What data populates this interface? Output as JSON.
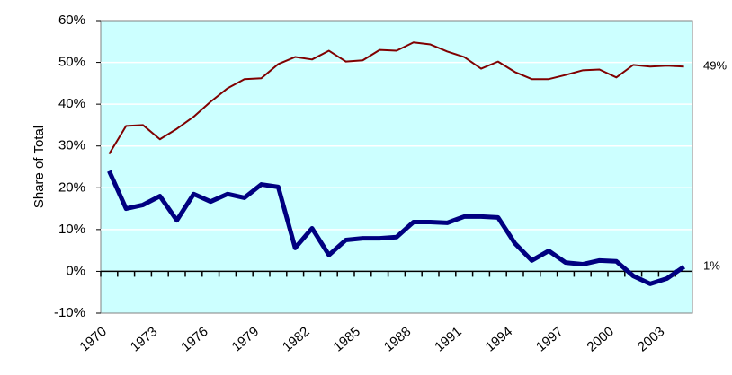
{
  "chart_data": {
    "type": "line",
    "y_label": "Share of Total",
    "categories": [
      "1970",
      null,
      null,
      "1973",
      null,
      null,
      "1976",
      null,
      null,
      "1979",
      null,
      null,
      "1982",
      null,
      null,
      "1985",
      null,
      null,
      "1988",
      null,
      null,
      "1991",
      null,
      null,
      "1994",
      null,
      null,
      "1997",
      null,
      null,
      "2000",
      null,
      null,
      "2003",
      null
    ],
    "series": [
      {
        "color": "#800000",
        "width": 2,
        "end_label": "49%",
        "values": [
          28.1,
          34.8,
          35,
          31.6,
          34.1,
          37,
          40.6,
          43.8,
          46,
          46.2,
          49.6,
          51.3,
          50.7,
          52.8,
          50.2,
          50.5,
          53,
          52.8,
          54.8,
          54.3,
          52.6,
          51.3,
          48.5,
          50.2,
          47.7,
          46,
          46,
          47,
          48.1,
          48.3,
          46.4,
          49.4,
          49,
          49.2,
          49
        ]
      },
      {
        "color": "#000080",
        "width": 5,
        "end_label": "1%",
        "values": [
          24,
          15,
          15.9,
          18,
          12.2,
          18.5,
          16.7,
          18.5,
          17.6,
          20.8,
          20.2,
          5.6,
          10.3,
          3.9,
          7.5,
          7.9,
          7.9,
          8.2,
          11.8,
          11.8,
          11.6,
          13.1,
          13.1,
          12.9,
          6.7,
          2.6,
          4.9,
          2.1,
          1.7,
          2.6,
          2.4,
          -1.1,
          -3,
          -1.7,
          1.1
        ]
      }
    ],
    "ylim": [
      -10,
      60
    ],
    "yticks": [
      {
        "value": -10,
        "label": "-10%"
      },
      {
        "value": 0,
        "label": "0%"
      },
      {
        "value": 10,
        "label": "10%"
      },
      {
        "value": 20,
        "label": "20%"
      },
      {
        "value": 30,
        "label": "30%"
      },
      {
        "value": 40,
        "label": "40%"
      },
      {
        "value": 50,
        "label": "50%"
      },
      {
        "value": 60,
        "label": "60%"
      }
    ],
    "grid": true,
    "background": "#ccffff"
  }
}
